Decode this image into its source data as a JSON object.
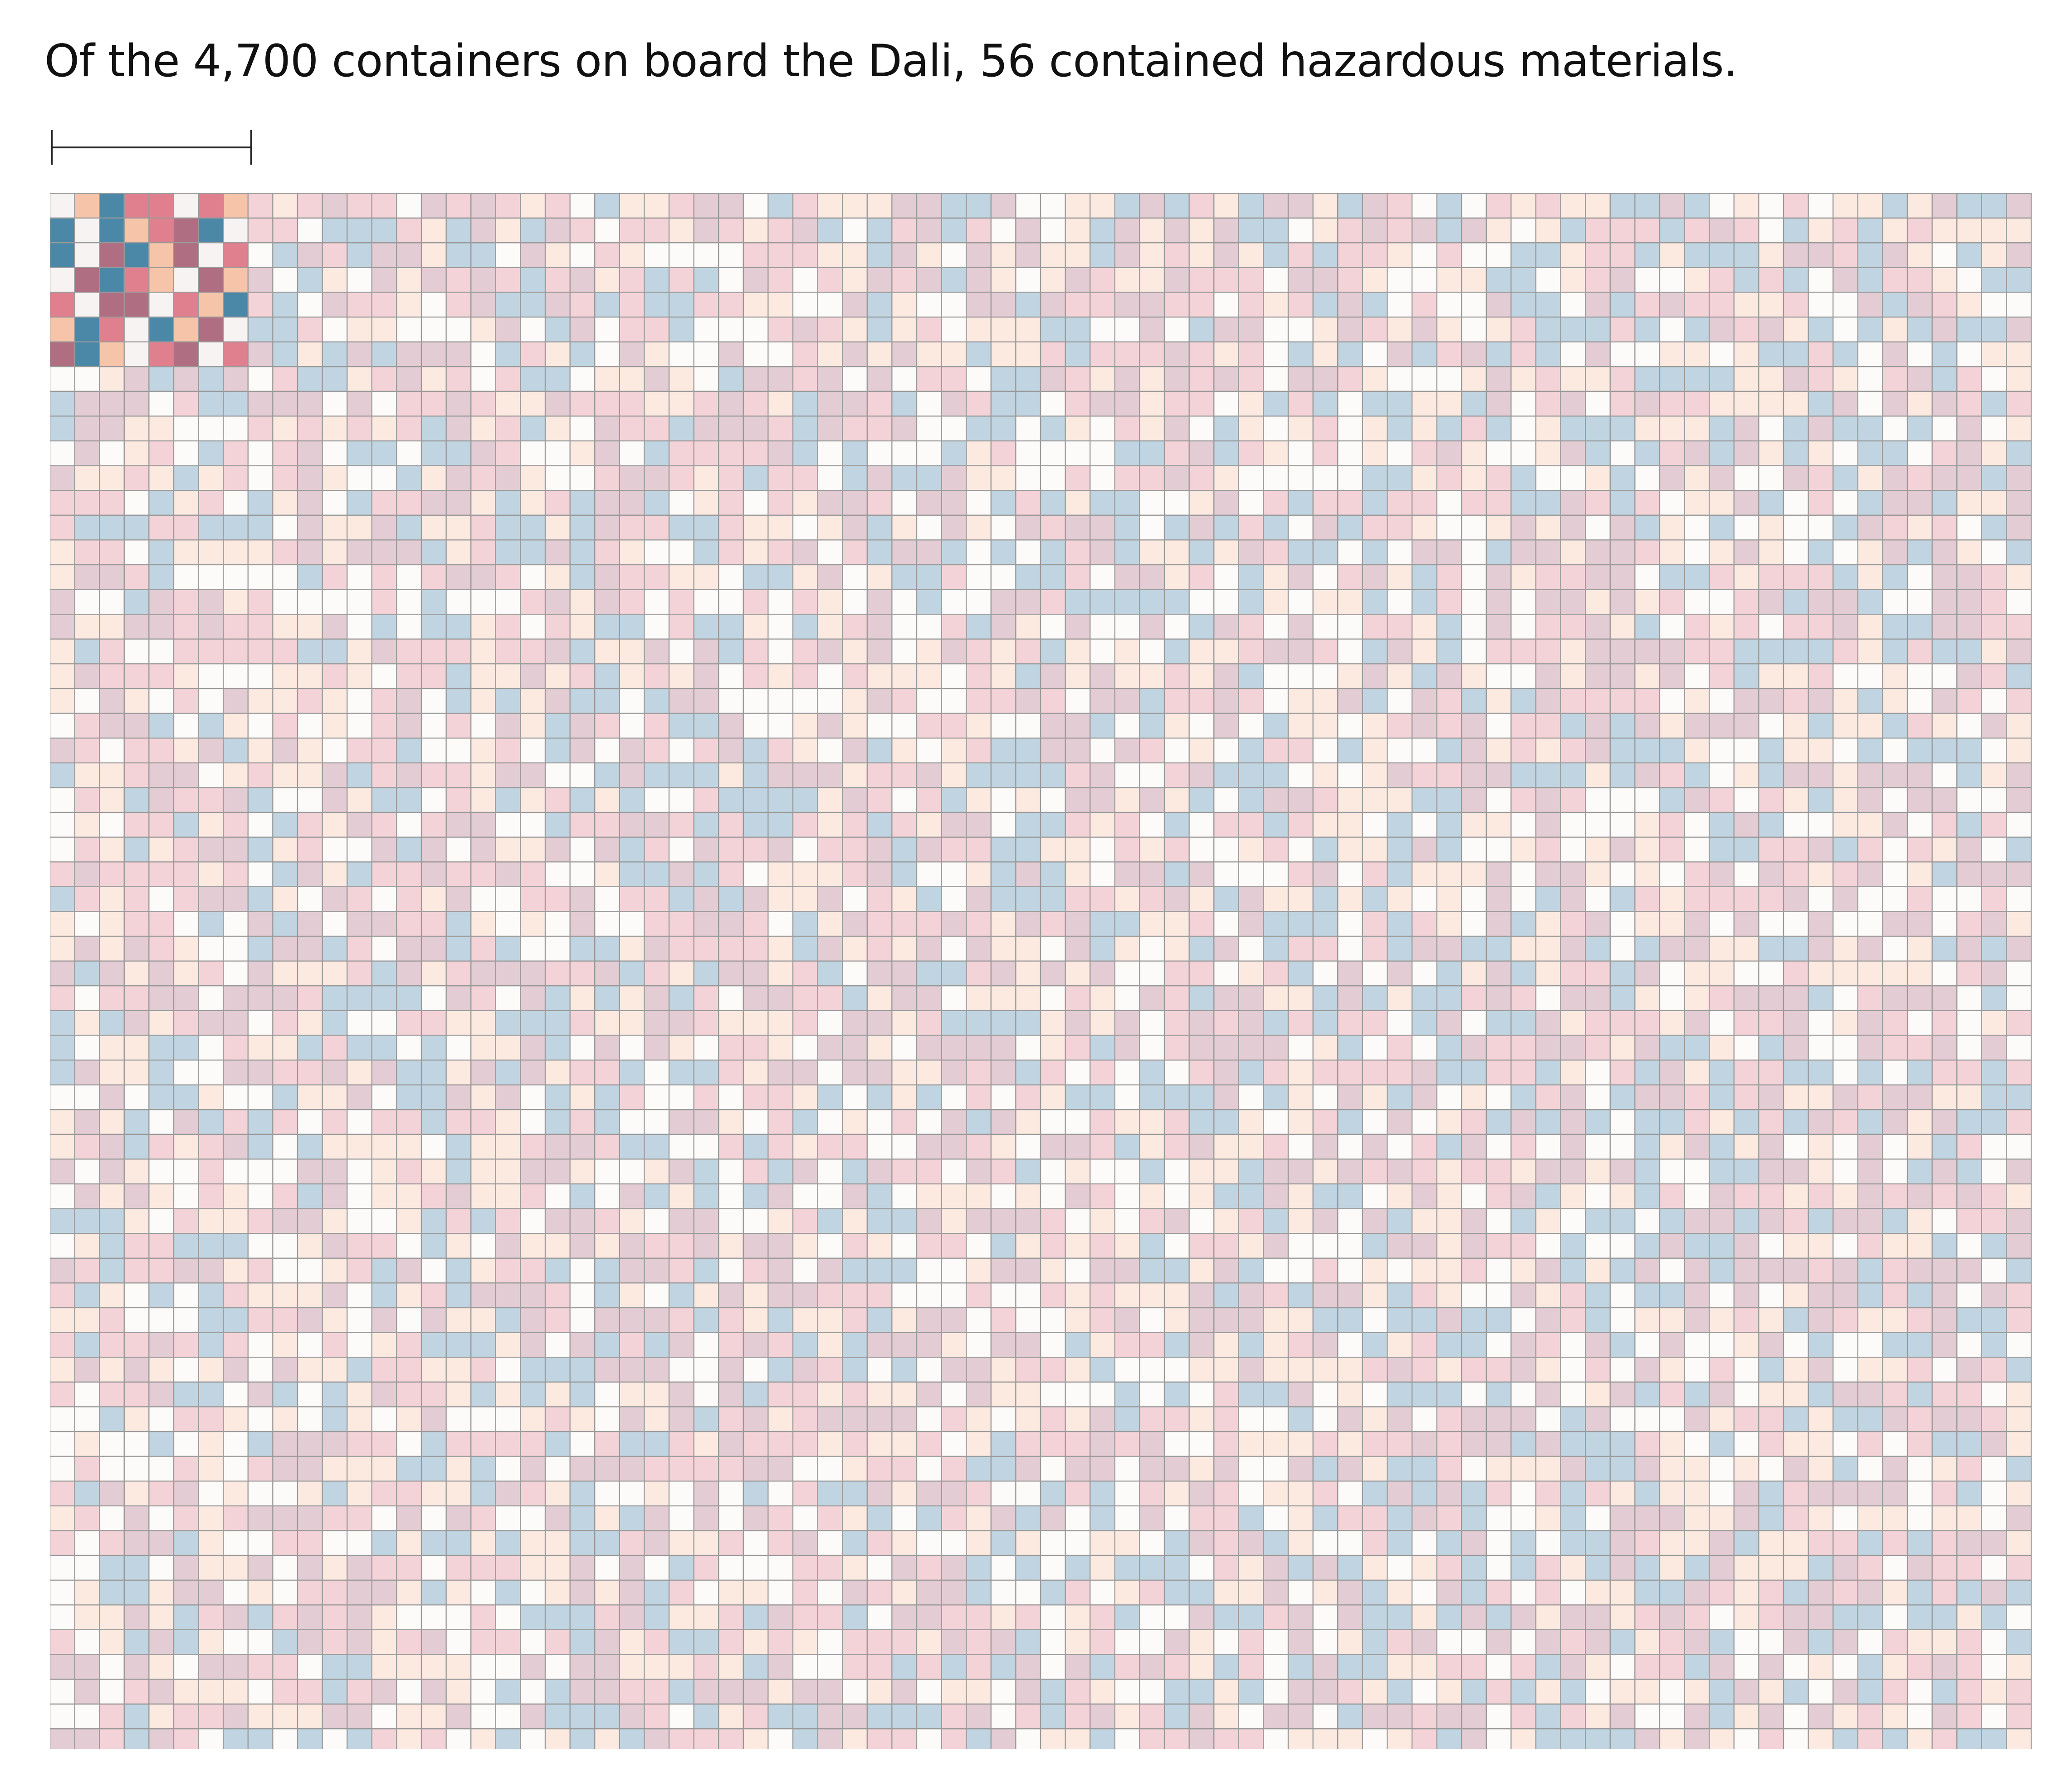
{
  "title": "Of the 4,700 containers on board the Dali, 56 contained hazardous materials.",
  "chart_data": {
    "type": "waffle",
    "total_containers": 4700,
    "hazardous_containers": 56,
    "grid": {
      "columns": 80,
      "rows": 63
    },
    "highlight_block": {
      "columns": 8,
      "rows": 7
    },
    "palette": [
      "#f7f3f2",
      "#f6c4a8",
      "#4b88a8",
      "#e0808f",
      "#b06e82"
    ],
    "highlight_pattern": [
      [
        0,
        1,
        2,
        3,
        3,
        0,
        3,
        1
      ],
      [
        2,
        0,
        2,
        1,
        3,
        4,
        2,
        0
      ],
      [
        2,
        0,
        4,
        2,
        1,
        4,
        0,
        3
      ],
      [
        0,
        4,
        2,
        3,
        1,
        0,
        4,
        1
      ],
      [
        3,
        0,
        4,
        4,
        0,
        3,
        1,
        2
      ],
      [
        1,
        2,
        3,
        0,
        2,
        1,
        4,
        0
      ],
      [
        4,
        2,
        1,
        0,
        3,
        4,
        0,
        3
      ]
    ],
    "faded_opacity": 0.35
  }
}
